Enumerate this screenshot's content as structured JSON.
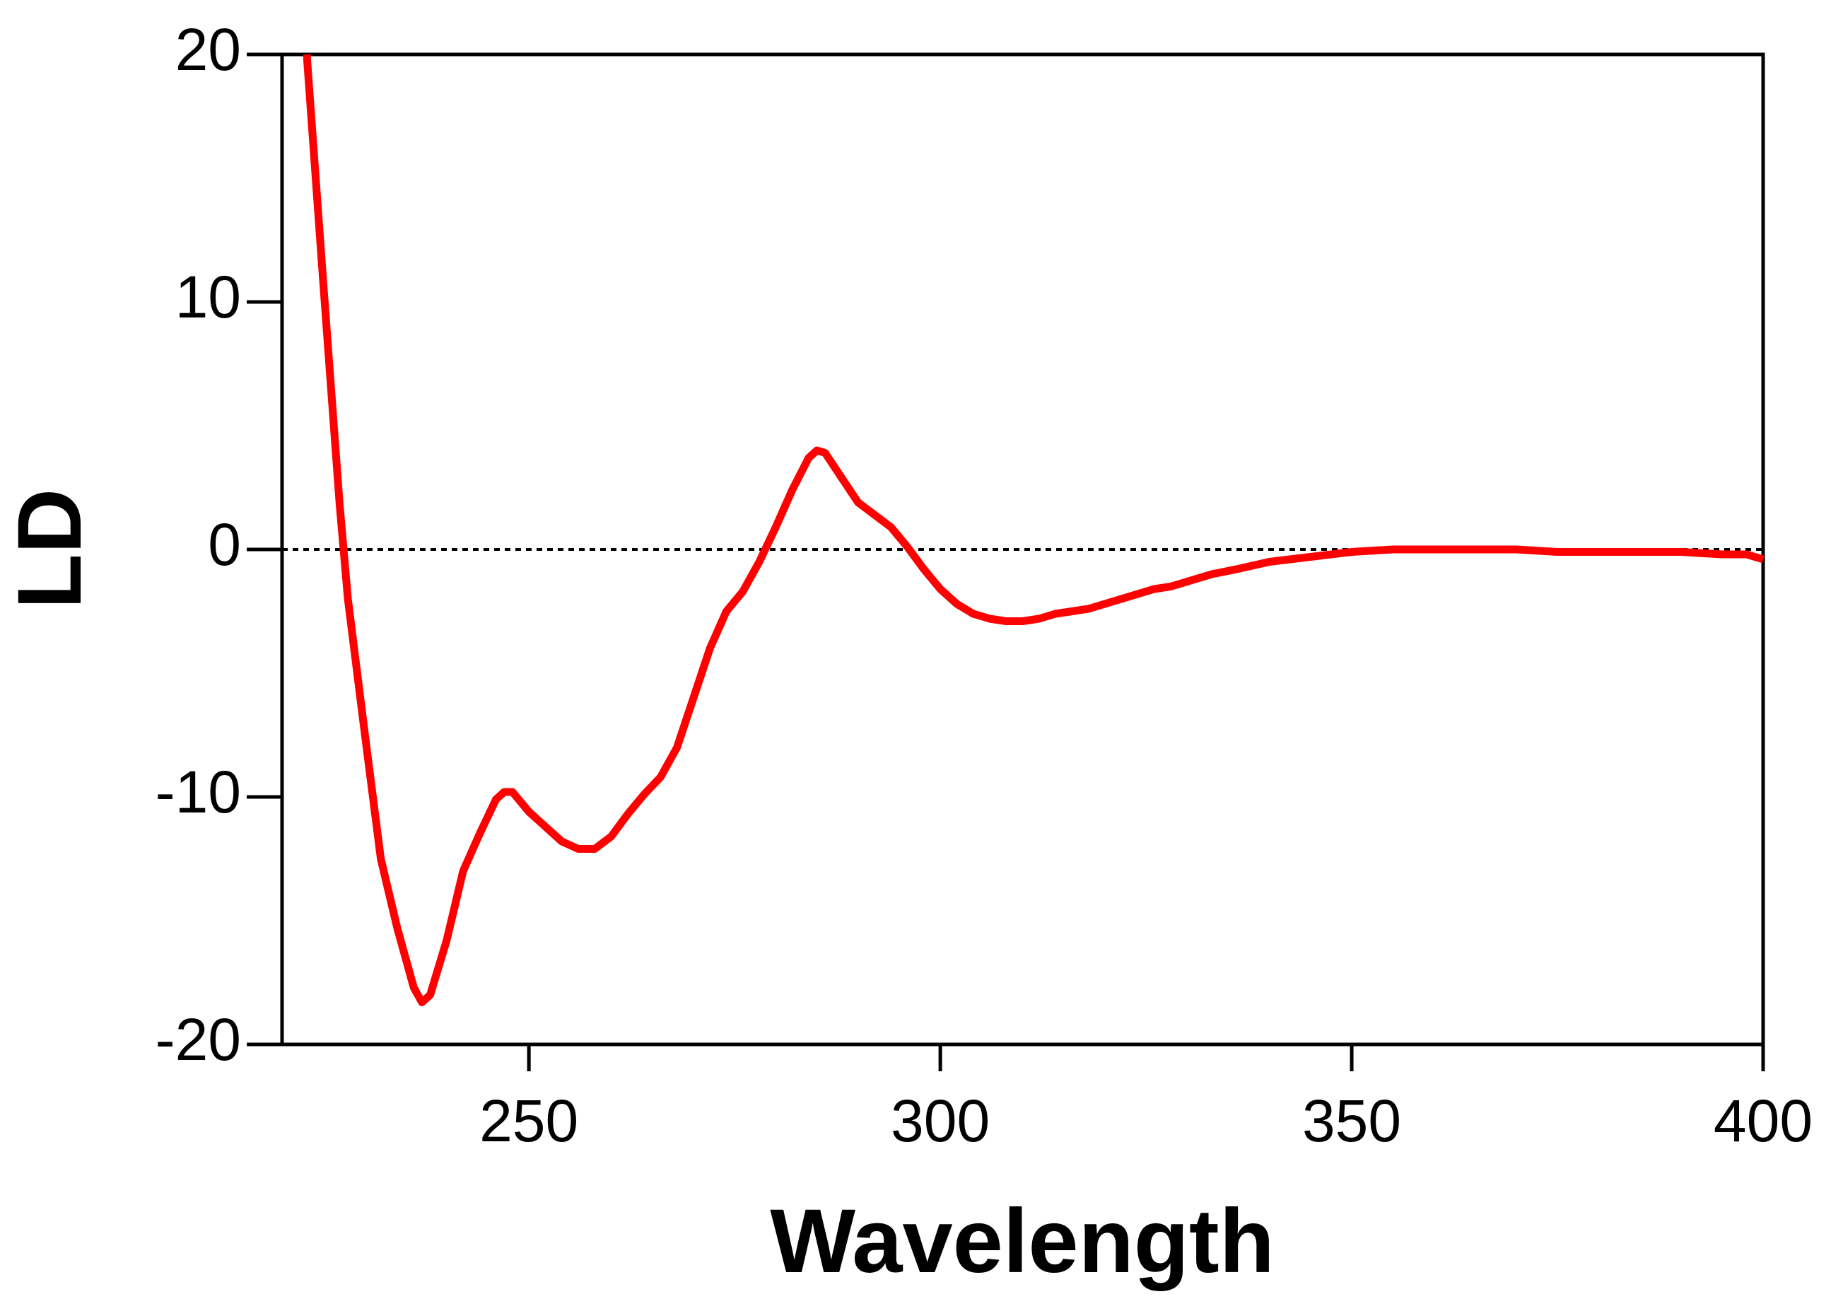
{
  "chart_data": {
    "type": "line",
    "x_label": "Wavelength",
    "y_label": "LD",
    "x": [
      223,
      225,
      227,
      228,
      230,
      232,
      234,
      236,
      237,
      238,
      240,
      242,
      244,
      246,
      247,
      248,
      250,
      252,
      254,
      256,
      258,
      260,
      262,
      264,
      266,
      268,
      270,
      272,
      274,
      276,
      278,
      280,
      282,
      284,
      285,
      286,
      288,
      290,
      292,
      294,
      296,
      298,
      300,
      302,
      304,
      306,
      308,
      310,
      312,
      314,
      316,
      318,
      320,
      322,
      324,
      326,
      328,
      330,
      333,
      336,
      340,
      345,
      350,
      355,
      360,
      365,
      370,
      375,
      380,
      385,
      390,
      395,
      398,
      400
    ],
    "series": [
      {
        "color": "#ff0000",
        "values": [
          20,
          10.8,
          1.8,
          -2,
          -7.3,
          -12.5,
          -15.3,
          -17.7,
          -18.3,
          -18.0,
          -15.8,
          -13,
          -11.5,
          -10.1,
          -9.8,
          -9.8,
          -10.6,
          -11.2,
          -11.8,
          -12.1,
          -12.1,
          -11.6,
          -10.7,
          -9.9,
          -9.2,
          -8,
          -6,
          -4,
          -2.5,
          -1.7,
          -0.5,
          0.9,
          2.4,
          3.7,
          4.0,
          3.9,
          2.9,
          1.9,
          1.4,
          0.9,
          0.1,
          -0.8,
          -1.6,
          -2.2,
          -2.6,
          -2.8,
          -2.9,
          -2.9,
          -2.8,
          -2.6,
          -2.5,
          -2.4,
          -2.2,
          -2.0,
          -1.8,
          -1.6,
          -1.5,
          -1.3,
          -1.0,
          -0.8,
          -0.5,
          -0.3,
          -0.1,
          0,
          0,
          0,
          0,
          -0.1,
          -0.1,
          -0.1,
          -0.1,
          -0.2,
          -0.2,
          -0.4
        ]
      }
    ],
    "xlim": [
      220,
      400
    ],
    "xticks": [
      250,
      300,
      350,
      400
    ],
    "ylim": [
      -20,
      20
    ],
    "yticks": [
      -20,
      -10,
      0,
      10,
      20
    ],
    "hlines": [
      0
    ]
  }
}
